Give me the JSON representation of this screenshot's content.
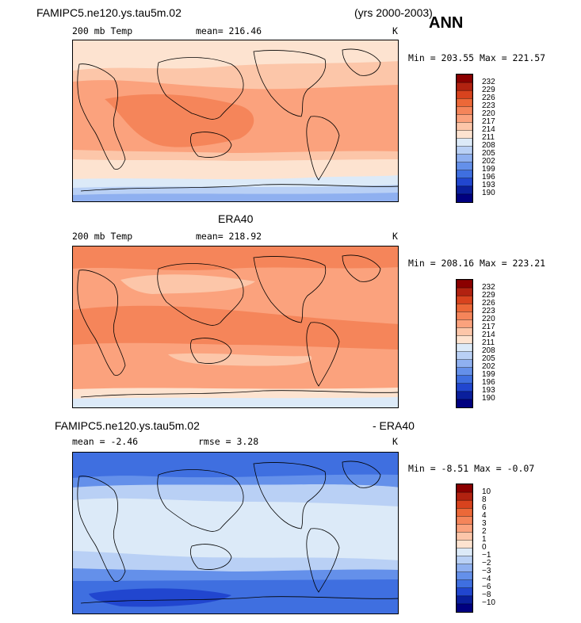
{
  "chart_data": [
    {
      "type": "heatmap",
      "case_name": "FAMIPC5.ne120.ys.tau5m.02",
      "years": "(yrs 2000-2003)",
      "season": "ANN",
      "field_label": "200 mb Temp",
      "mean_text": "mean= 216.46",
      "units": "K",
      "minmax_text": "Min = 203.55 Max = 221.57",
      "min": 203.55,
      "max": 221.57,
      "mean": 216.46,
      "colorbar_levels": [
        "232",
        "229",
        "226",
        "223",
        "220",
        "217",
        "214",
        "211",
        "208",
        "205",
        "202",
        "199",
        "196",
        "193",
        "190"
      ],
      "colorbar_colors": [
        "#8b0000",
        "#b22210",
        "#d8431e",
        "#ec6838",
        "#f5855a",
        "#fba27d",
        "#fcc6a9",
        "#fde3d0",
        "#dceaf8",
        "#b9d0f5",
        "#8fb0f0",
        "#6490ea",
        "#3f6fe0",
        "#2146cf",
        "#0a1f9c",
        "#000080"
      ],
      "bands": [
        {
          "value": 211.5,
          "color": "#fde3d0"
        },
        {
          "value": 213.5,
          "color": "#fcc6a9"
        },
        {
          "value": 216,
          "color": "#fba27d"
        },
        {
          "value": 219,
          "color": "#f5855a"
        },
        {
          "value": 209,
          "color": "#dceaf8"
        },
        {
          "value": 206,
          "color": "#b9d0f5"
        },
        {
          "value": 203.5,
          "color": "#8fb0f0"
        }
      ]
    },
    {
      "type": "heatmap",
      "case_name": "ERA40",
      "field_label": "200 mb Temp",
      "mean_text": "mean= 218.92",
      "units": "K",
      "minmax_text": "Min = 208.16 Max = 223.21",
      "min": 208.16,
      "max": 223.21,
      "mean": 218.92,
      "colorbar_levels": [
        "232",
        "229",
        "226",
        "223",
        "220",
        "217",
        "214",
        "211",
        "208",
        "205",
        "202",
        "199",
        "196",
        "193",
        "190"
      ],
      "colorbar_colors": [
        "#8b0000",
        "#b22210",
        "#d8431e",
        "#ec6838",
        "#f5855a",
        "#fba27d",
        "#fcc6a9",
        "#fde3d0",
        "#dceaf8",
        "#b9d0f5",
        "#8fb0f0",
        "#6490ea",
        "#3f6fe0",
        "#2146cf",
        "#0a1f9c",
        "#000080"
      ]
    },
    {
      "type": "heatmap",
      "case_name": "FAMIPC5.ne120.ys.tau5m.02",
      "diff_suffix": "- ERA40",
      "mean_text": "mean =  -2.46",
      "rmse_text": "rmse =   3.28",
      "units": "K",
      "minmax_text": "Min =  -8.51 Max =  -0.07",
      "min": -8.51,
      "max": -0.07,
      "mean": -2.46,
      "rmse": 3.28,
      "colorbar_levels": [
        "10",
        "8",
        "6",
        "4",
        "3",
        "2",
        "1",
        "0",
        "−1",
        "−2",
        "−3",
        "−4",
        "−6",
        "−8",
        "−10"
      ],
      "colorbar_colors": [
        "#8b0000",
        "#b22210",
        "#d8431e",
        "#ec6838",
        "#f5855a",
        "#fba27d",
        "#fcc6a9",
        "#fde3d0",
        "#dceaf8",
        "#b9d0f5",
        "#8fb0f0",
        "#6490ea",
        "#3f6fe0",
        "#2146cf",
        "#0a1f9c",
        "#000080"
      ]
    }
  ]
}
